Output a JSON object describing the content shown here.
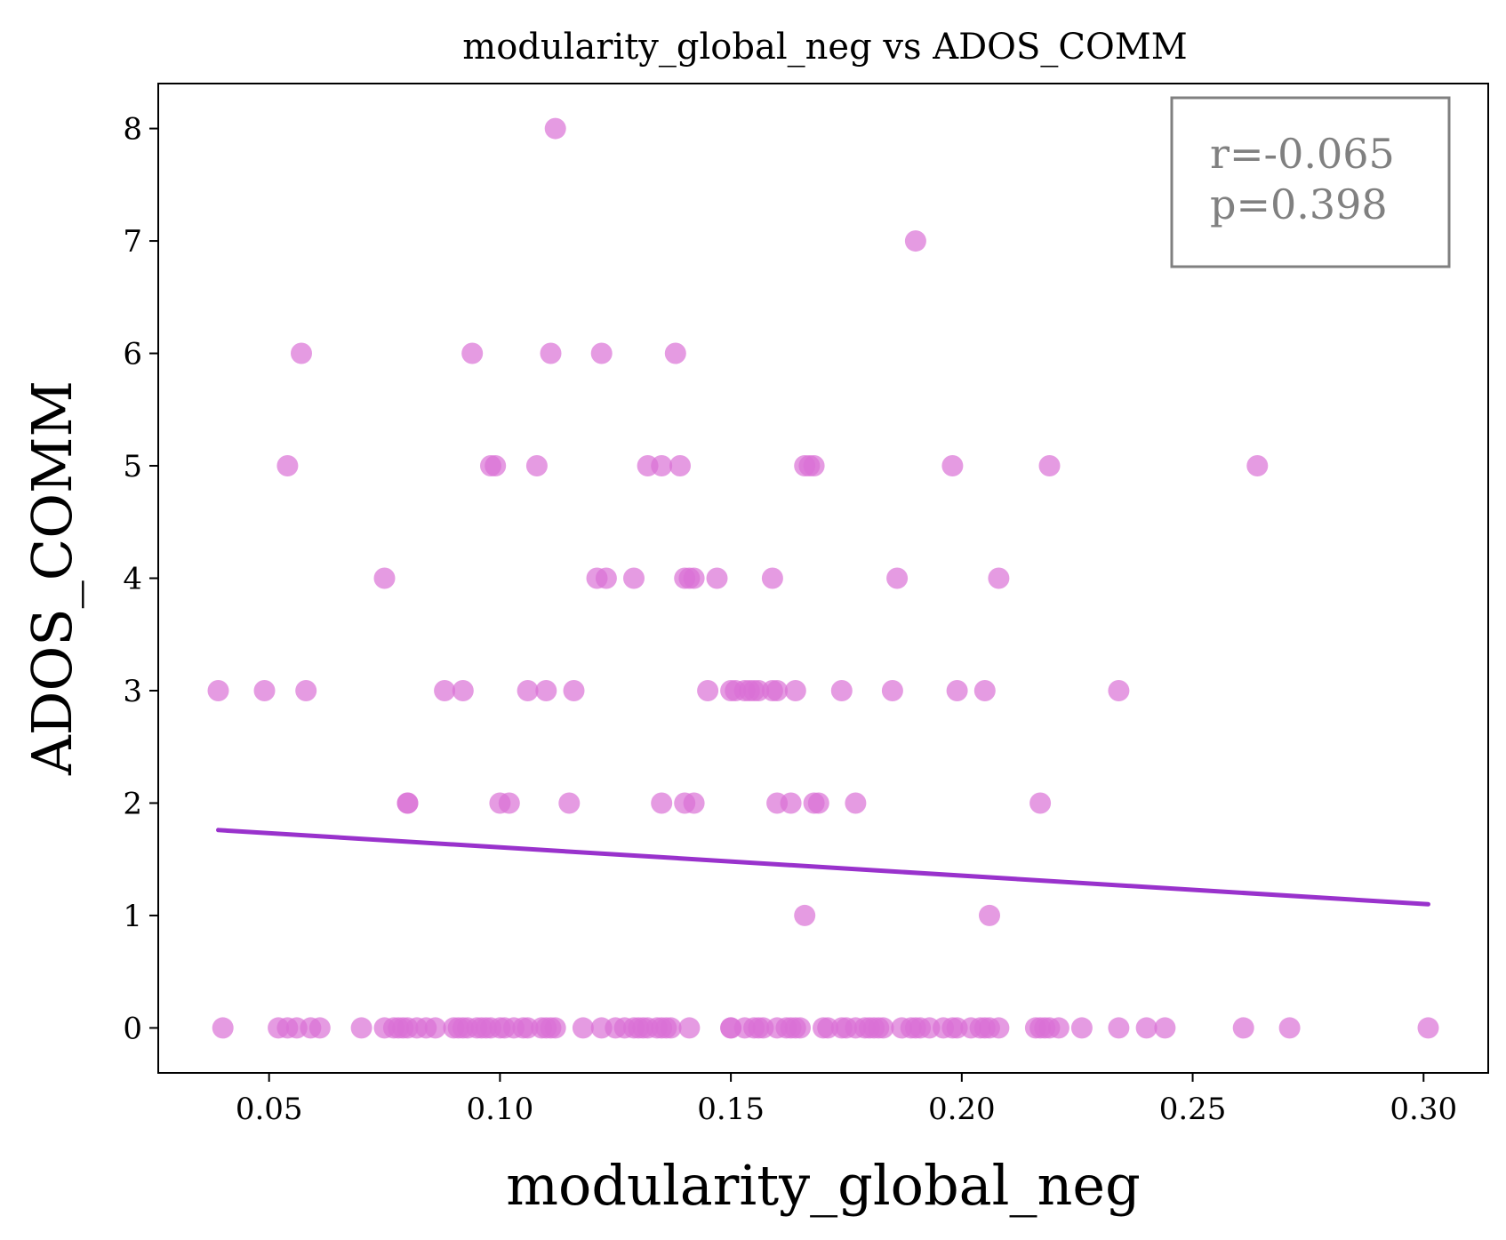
{
  "chart_data": {
    "type": "scatter",
    "title": "modularity_global_neg vs ADOS_COMM",
    "xlabel": "modularity_global_neg",
    "ylabel": "ADOS_COMM",
    "xlim": [
      0.026,
      0.314
    ],
    "ylim": [
      -0.4,
      8.4
    ],
    "x_ticks": [
      "0.05",
      "0.10",
      "0.15",
      "0.20",
      "0.25",
      "0.30"
    ],
    "y_ticks": [
      "0",
      "1",
      "2",
      "3",
      "4",
      "5",
      "6",
      "7",
      "8"
    ],
    "grid": false,
    "colors": {
      "points": "#DA70D6",
      "fit_line": "#9932CC",
      "stats_box": "#808080"
    },
    "stats": {
      "r_text": "r=-0.065",
      "p_text": "p=0.398",
      "placement": "top-right"
    },
    "fit_line": {
      "x": [
        0.039,
        0.301
      ],
      "y": [
        1.76,
        1.1
      ]
    },
    "points": [
      {
        "x": 0.112,
        "y": 8
      },
      {
        "x": 0.19,
        "y": 7
      },
      {
        "x": 0.057,
        "y": 6
      },
      {
        "x": 0.094,
        "y": 6
      },
      {
        "x": 0.111,
        "y": 6
      },
      {
        "x": 0.122,
        "y": 6
      },
      {
        "x": 0.138,
        "y": 6
      },
      {
        "x": 0.054,
        "y": 5
      },
      {
        "x": 0.098,
        "y": 5
      },
      {
        "x": 0.099,
        "y": 5
      },
      {
        "x": 0.108,
        "y": 5
      },
      {
        "x": 0.132,
        "y": 5
      },
      {
        "x": 0.135,
        "y": 5
      },
      {
        "x": 0.139,
        "y": 5
      },
      {
        "x": 0.166,
        "y": 5
      },
      {
        "x": 0.167,
        "y": 5
      },
      {
        "x": 0.168,
        "y": 5
      },
      {
        "x": 0.198,
        "y": 5
      },
      {
        "x": 0.219,
        "y": 5
      },
      {
        "x": 0.264,
        "y": 5
      },
      {
        "x": 0.075,
        "y": 4
      },
      {
        "x": 0.121,
        "y": 4
      },
      {
        "x": 0.123,
        "y": 4
      },
      {
        "x": 0.129,
        "y": 4
      },
      {
        "x": 0.14,
        "y": 4
      },
      {
        "x": 0.141,
        "y": 4
      },
      {
        "x": 0.142,
        "y": 4
      },
      {
        "x": 0.147,
        "y": 4
      },
      {
        "x": 0.159,
        "y": 4
      },
      {
        "x": 0.186,
        "y": 4
      },
      {
        "x": 0.208,
        "y": 4
      },
      {
        "x": 0.039,
        "y": 3
      },
      {
        "x": 0.049,
        "y": 3
      },
      {
        "x": 0.058,
        "y": 3
      },
      {
        "x": 0.088,
        "y": 3
      },
      {
        "x": 0.092,
        "y": 3
      },
      {
        "x": 0.106,
        "y": 3
      },
      {
        "x": 0.11,
        "y": 3
      },
      {
        "x": 0.116,
        "y": 3
      },
      {
        "x": 0.145,
        "y": 3
      },
      {
        "x": 0.15,
        "y": 3
      },
      {
        "x": 0.151,
        "y": 3
      },
      {
        "x": 0.153,
        "y": 3
      },
      {
        "x": 0.154,
        "y": 3
      },
      {
        "x": 0.155,
        "y": 3
      },
      {
        "x": 0.156,
        "y": 3
      },
      {
        "x": 0.159,
        "y": 3
      },
      {
        "x": 0.16,
        "y": 3
      },
      {
        "x": 0.164,
        "y": 3
      },
      {
        "x": 0.174,
        "y": 3
      },
      {
        "x": 0.185,
        "y": 3
      },
      {
        "x": 0.199,
        "y": 3
      },
      {
        "x": 0.205,
        "y": 3
      },
      {
        "x": 0.234,
        "y": 3
      },
      {
        "x": 0.08,
        "y": 2
      },
      {
        "x": 0.08,
        "y": 2
      },
      {
        "x": 0.1,
        "y": 2
      },
      {
        "x": 0.102,
        "y": 2
      },
      {
        "x": 0.115,
        "y": 2
      },
      {
        "x": 0.135,
        "y": 2
      },
      {
        "x": 0.14,
        "y": 2
      },
      {
        "x": 0.142,
        "y": 2
      },
      {
        "x": 0.16,
        "y": 2
      },
      {
        "x": 0.163,
        "y": 2
      },
      {
        "x": 0.168,
        "y": 2
      },
      {
        "x": 0.169,
        "y": 2
      },
      {
        "x": 0.177,
        "y": 2
      },
      {
        "x": 0.217,
        "y": 2
      },
      {
        "x": 0.166,
        "y": 1
      },
      {
        "x": 0.206,
        "y": 1
      },
      {
        "x": 0.04,
        "y": 0
      },
      {
        "x": 0.052,
        "y": 0
      },
      {
        "x": 0.054,
        "y": 0
      },
      {
        "x": 0.056,
        "y": 0
      },
      {
        "x": 0.059,
        "y": 0
      },
      {
        "x": 0.061,
        "y": 0
      },
      {
        "x": 0.07,
        "y": 0
      },
      {
        "x": 0.075,
        "y": 0
      },
      {
        "x": 0.077,
        "y": 0
      },
      {
        "x": 0.078,
        "y": 0
      },
      {
        "x": 0.079,
        "y": 0
      },
      {
        "x": 0.08,
        "y": 0
      },
      {
        "x": 0.082,
        "y": 0
      },
      {
        "x": 0.084,
        "y": 0
      },
      {
        "x": 0.086,
        "y": 0
      },
      {
        "x": 0.09,
        "y": 0
      },
      {
        "x": 0.091,
        "y": 0
      },
      {
        "x": 0.092,
        "y": 0
      },
      {
        "x": 0.093,
        "y": 0
      },
      {
        "x": 0.095,
        "y": 0
      },
      {
        "x": 0.096,
        "y": 0
      },
      {
        "x": 0.097,
        "y": 0
      },
      {
        "x": 0.098,
        "y": 0
      },
      {
        "x": 0.1,
        "y": 0
      },
      {
        "x": 0.101,
        "y": 0
      },
      {
        "x": 0.103,
        "y": 0
      },
      {
        "x": 0.105,
        "y": 0
      },
      {
        "x": 0.106,
        "y": 0
      },
      {
        "x": 0.109,
        "y": 0
      },
      {
        "x": 0.11,
        "y": 0
      },
      {
        "x": 0.111,
        "y": 0
      },
      {
        "x": 0.112,
        "y": 0
      },
      {
        "x": 0.118,
        "y": 0
      },
      {
        "x": 0.122,
        "y": 0
      },
      {
        "x": 0.125,
        "y": 0
      },
      {
        "x": 0.127,
        "y": 0
      },
      {
        "x": 0.129,
        "y": 0
      },
      {
        "x": 0.13,
        "y": 0
      },
      {
        "x": 0.131,
        "y": 0
      },
      {
        "x": 0.132,
        "y": 0
      },
      {
        "x": 0.134,
        "y": 0
      },
      {
        "x": 0.135,
        "y": 0
      },
      {
        "x": 0.136,
        "y": 0
      },
      {
        "x": 0.137,
        "y": 0
      },
      {
        "x": 0.141,
        "y": 0
      },
      {
        "x": 0.15,
        "y": 0
      },
      {
        "x": 0.15,
        "y": 0
      },
      {
        "x": 0.153,
        "y": 0
      },
      {
        "x": 0.155,
        "y": 0
      },
      {
        "x": 0.156,
        "y": 0
      },
      {
        "x": 0.157,
        "y": 0
      },
      {
        "x": 0.16,
        "y": 0
      },
      {
        "x": 0.162,
        "y": 0
      },
      {
        "x": 0.163,
        "y": 0
      },
      {
        "x": 0.164,
        "y": 0
      },
      {
        "x": 0.165,
        "y": 0
      },
      {
        "x": 0.17,
        "y": 0
      },
      {
        "x": 0.171,
        "y": 0
      },
      {
        "x": 0.174,
        "y": 0
      },
      {
        "x": 0.175,
        "y": 0
      },
      {
        "x": 0.177,
        "y": 0
      },
      {
        "x": 0.179,
        "y": 0
      },
      {
        "x": 0.18,
        "y": 0
      },
      {
        "x": 0.181,
        "y": 0
      },
      {
        "x": 0.182,
        "y": 0
      },
      {
        "x": 0.183,
        "y": 0
      },
      {
        "x": 0.187,
        "y": 0
      },
      {
        "x": 0.189,
        "y": 0
      },
      {
        "x": 0.19,
        "y": 0
      },
      {
        "x": 0.191,
        "y": 0
      },
      {
        "x": 0.193,
        "y": 0
      },
      {
        "x": 0.196,
        "y": 0
      },
      {
        "x": 0.198,
        "y": 0
      },
      {
        "x": 0.199,
        "y": 0
      },
      {
        "x": 0.202,
        "y": 0
      },
      {
        "x": 0.204,
        "y": 0
      },
      {
        "x": 0.205,
        "y": 0
      },
      {
        "x": 0.206,
        "y": 0
      },
      {
        "x": 0.208,
        "y": 0
      },
      {
        "x": 0.216,
        "y": 0
      },
      {
        "x": 0.217,
        "y": 0
      },
      {
        "x": 0.218,
        "y": 0
      },
      {
        "x": 0.219,
        "y": 0
      },
      {
        "x": 0.221,
        "y": 0
      },
      {
        "x": 0.226,
        "y": 0
      },
      {
        "x": 0.234,
        "y": 0
      },
      {
        "x": 0.24,
        "y": 0
      },
      {
        "x": 0.244,
        "y": 0
      },
      {
        "x": 0.261,
        "y": 0
      },
      {
        "x": 0.271,
        "y": 0
      },
      {
        "x": 0.301,
        "y": 0
      }
    ]
  }
}
